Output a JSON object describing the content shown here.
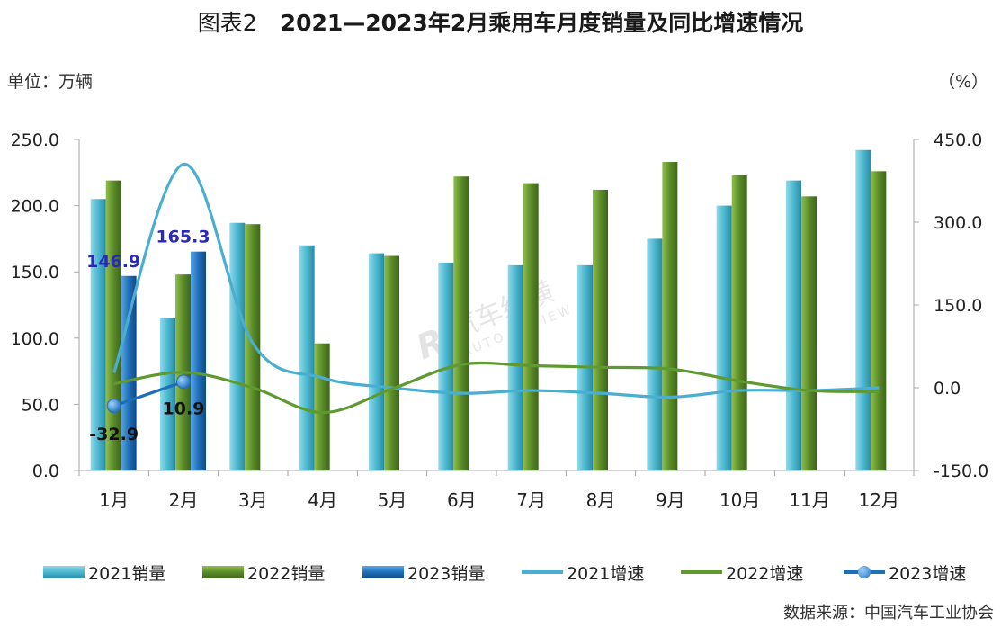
{
  "header": {
    "prefix": "图表2",
    "title": "2021—2023年2月乘用车月度销量及同比增速情况"
  },
  "unit_left": "单位：万辆",
  "unit_right": "（%）",
  "source": "数据来源：中国汽车工业协会",
  "watermark": {
    "cn": "汽车纵横",
    "en": "AUTO REVIEW"
  },
  "colors": {
    "bar2021": "#4bb8cf",
    "bar2022": "#5b8c2a",
    "bar2023": "#1f6fb8",
    "line2021": "#4aaed0",
    "line2022": "#5e9a30",
    "line2023": "#1f6fb8",
    "label2023": "#2a2ab8"
  },
  "chart_data": {
    "type": "bar",
    "categories": [
      "1月",
      "2月",
      "3月",
      "4月",
      "5月",
      "6月",
      "7月",
      "8月",
      "9月",
      "10月",
      "11月",
      "12月"
    ],
    "left_axis": {
      "ylim": [
        0,
        250
      ],
      "ticks": [
        "0.0",
        "50.0",
        "100.0",
        "150.0",
        "200.0",
        "250.0"
      ]
    },
    "right_axis": {
      "ylim": [
        -150,
        450
      ],
      "ticks": [
        "-150.0",
        "0.0",
        "150.0",
        "300.0",
        "450.0"
      ]
    },
    "series": [
      {
        "name": "2021销量",
        "kind": "bar",
        "axis": "left",
        "values": [
          205,
          115,
          187,
          170,
          164,
          157,
          155,
          155,
          175,
          200,
          219,
          242
        ]
      },
      {
        "name": "2022销量",
        "kind": "bar",
        "axis": "left",
        "values": [
          219,
          148,
          186,
          96,
          162,
          222,
          217,
          212,
          233,
          223,
          207,
          226
        ]
      },
      {
        "name": "2023销量",
        "kind": "bar",
        "axis": "left",
        "values": [
          146.9,
          165.3,
          null,
          null,
          null,
          null,
          null,
          null,
          null,
          null,
          null,
          null
        ]
      },
      {
        "name": "2021增速",
        "kind": "line",
        "axis": "right",
        "values": [
          27,
          405,
          80,
          18,
          0,
          -10,
          -5,
          -10,
          -17,
          -5,
          -5,
          0
        ]
      },
      {
        "name": "2022增速",
        "kind": "line",
        "axis": "right",
        "values": [
          7,
          28,
          0,
          -45,
          -2,
          42,
          40,
          37,
          34,
          12,
          -5,
          -7
        ]
      },
      {
        "name": "2023增速",
        "kind": "line",
        "axis": "right",
        "values": [
          -32.9,
          10.9,
          null,
          null,
          null,
          null,
          null,
          null,
          null,
          null,
          null,
          null
        ]
      }
    ],
    "data_labels": [
      {
        "series": "2023销量",
        "index": 0,
        "text": "146.9"
      },
      {
        "series": "2023销量",
        "index": 1,
        "text": "165.3"
      },
      {
        "series": "2023增速",
        "index": 0,
        "text": "-32.9"
      },
      {
        "series": "2023增速",
        "index": 1,
        "text": "10.9"
      }
    ],
    "legend": "bottom"
  }
}
